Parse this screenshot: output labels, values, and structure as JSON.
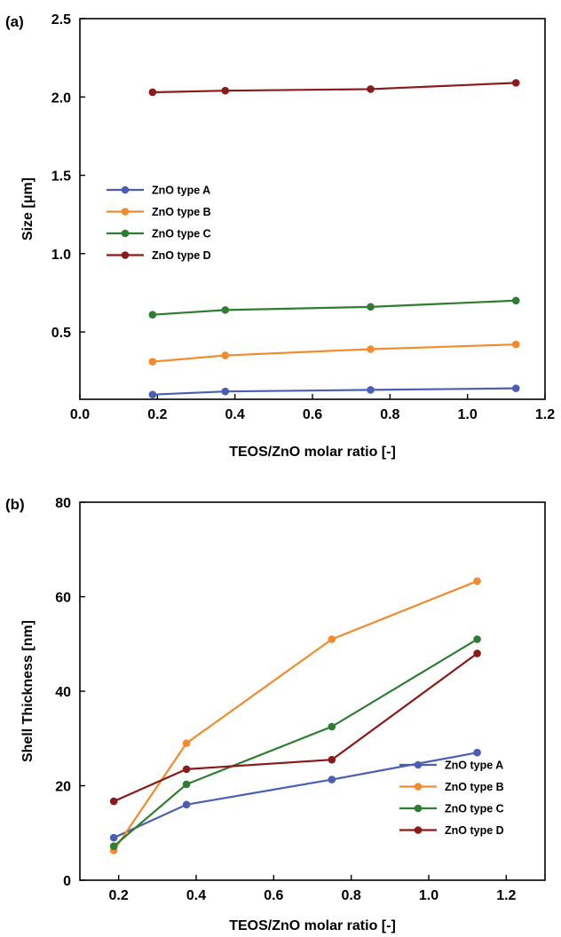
{
  "chart_data": [
    {
      "type": "line",
      "panel_label": "(a)",
      "xlabel": "TEOS/ZnO molar ratio [-]",
      "ylabel": "Size [μm]",
      "xlim": [
        0.0,
        1.2
      ],
      "ylim": [
        0.07,
        2.5
      ],
      "x_ticks": [
        "0.0",
        "0.2",
        "0.4",
        "0.6",
        "0.8",
        "1.0",
        "1.2"
      ],
      "y_ticks": [
        "0.5",
        "1.0",
        "1.5",
        "2.0",
        "2.5"
      ],
      "grid": false,
      "legend_position": "center-left",
      "x": [
        0.1875,
        0.375,
        0.75,
        1.125
      ],
      "series": [
        {
          "name": "ZnO type A",
          "color": "#4a5fb4",
          "values": [
            0.1,
            0.12,
            0.13,
            0.14
          ]
        },
        {
          "name": "ZnO type B",
          "color": "#f28a2e",
          "values": [
            0.31,
            0.35,
            0.39,
            0.42
          ]
        },
        {
          "name": "ZnO type C",
          "color": "#2e7d32",
          "values": [
            0.61,
            0.64,
            0.66,
            0.7
          ]
        },
        {
          "name": "ZnO type D",
          "color": "#8b1a1a",
          "values": [
            2.03,
            2.04,
            2.05,
            2.09
          ]
        }
      ]
    },
    {
      "type": "line",
      "panel_label": "(b)",
      "xlabel": "TEOS/ZnO molar ratio [-]",
      "ylabel": "Shell Thickness [nm]",
      "xlim": [
        0.1,
        1.3
      ],
      "ylim": [
        0,
        80
      ],
      "x_ticks": [
        "0.2",
        "0.4",
        "0.6",
        "0.8",
        "1.0",
        "1.2"
      ],
      "y_ticks": [
        "0",
        "20",
        "40",
        "60",
        "80"
      ],
      "grid": false,
      "legend_position": "bottom-right",
      "x": [
        0.1875,
        0.375,
        0.75,
        1.125
      ],
      "series": [
        {
          "name": "ZnO type A",
          "color": "#4a5fb4",
          "values": [
            9.0,
            16.0,
            21.3,
            27.0
          ]
        },
        {
          "name": "ZnO type B",
          "color": "#f28a2e",
          "values": [
            6.3,
            29.0,
            51.0,
            63.3
          ]
        },
        {
          "name": "ZnO type C",
          "color": "#2e7d32",
          "values": [
            7.2,
            20.3,
            32.5,
            51.0
          ]
        },
        {
          "name": "ZnO type D",
          "color": "#8b1a1a",
          "values": [
            16.7,
            23.5,
            25.5,
            48.0
          ]
        }
      ]
    }
  ]
}
